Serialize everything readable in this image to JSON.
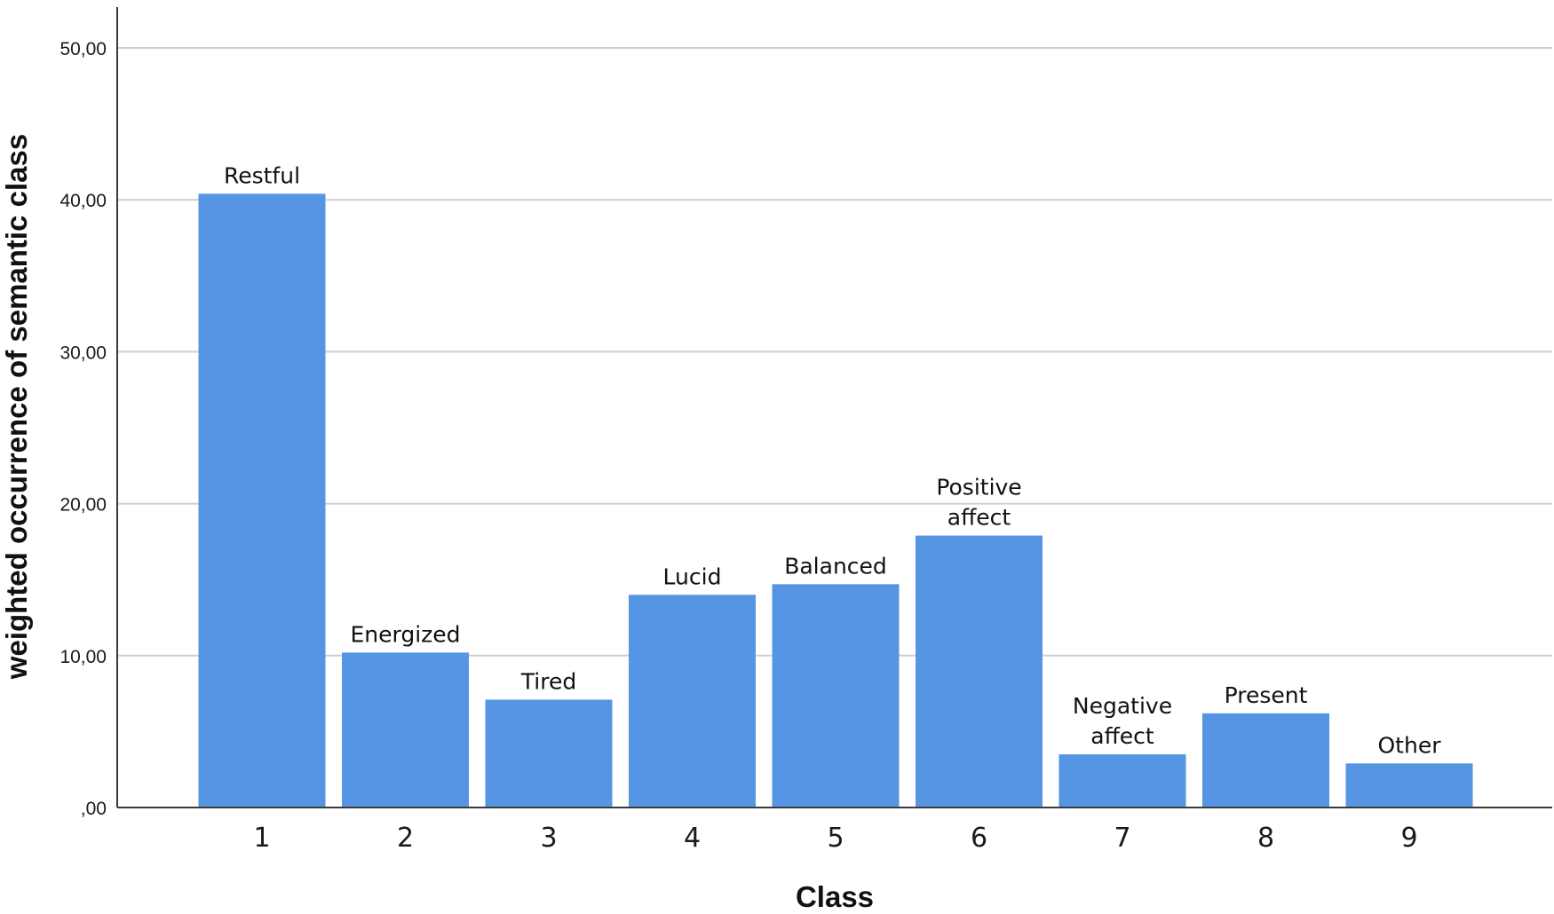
{
  "chart_data": {
    "type": "bar",
    "categories": [
      "1",
      "2",
      "3",
      "4",
      "5",
      "6",
      "7",
      "8",
      "9"
    ],
    "values": [
      40.4,
      10.2,
      7.1,
      14.0,
      14.7,
      17.9,
      3.5,
      6.2,
      2.9
    ],
    "bar_labels": [
      [
        "Restful"
      ],
      [
        "Energized"
      ],
      [
        "Tired"
      ],
      [
        "Lucid"
      ],
      [
        "Balanced"
      ],
      [
        "Positive",
        "affect"
      ],
      [
        "Negative",
        "affect"
      ],
      [
        "Present"
      ],
      [
        "Other"
      ]
    ],
    "xlabel": "Class",
    "ylabel": "weighted occurrence of  semantic class",
    "ylim": [
      0,
      50
    ],
    "yticks": [
      0,
      10,
      20,
      30,
      40,
      50
    ],
    "ytick_labels": [
      ",00",
      "10,00",
      "20,00",
      "30,00",
      "40,00",
      "50,00"
    ],
    "grid": "horizontal",
    "bar_color": "#5595e3"
  }
}
